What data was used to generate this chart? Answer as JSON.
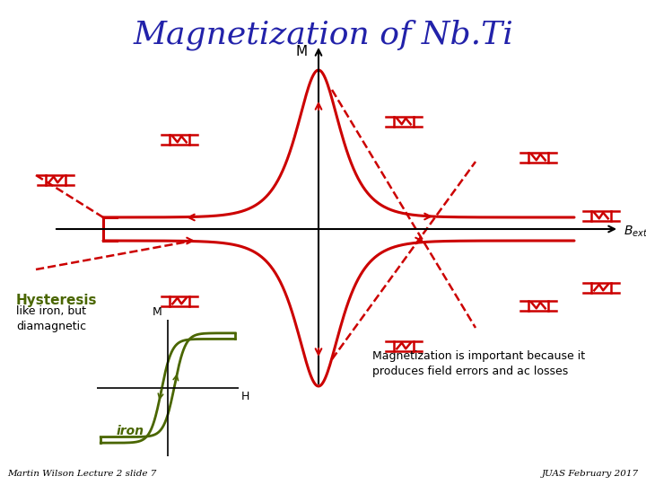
{
  "title": "Magnetization of Nb.Ti",
  "title_color": "#2222aa",
  "title_fontsize": 26,
  "bg_color": "#ffffff",
  "red_color": "#cc0000",
  "green_color": "#4a6600",
  "hysteresis_label": "Hysteresis",
  "hysteresis_sub": "like iron, but\ndiamagnetic",
  "iron_label": "iron",
  "mag_text": "Magnetization is important because it\nproduces field errors and ac losses",
  "footer_left": "Martin Wilson Lecture 2 slide 7",
  "footer_right": "JUAS February 2017"
}
